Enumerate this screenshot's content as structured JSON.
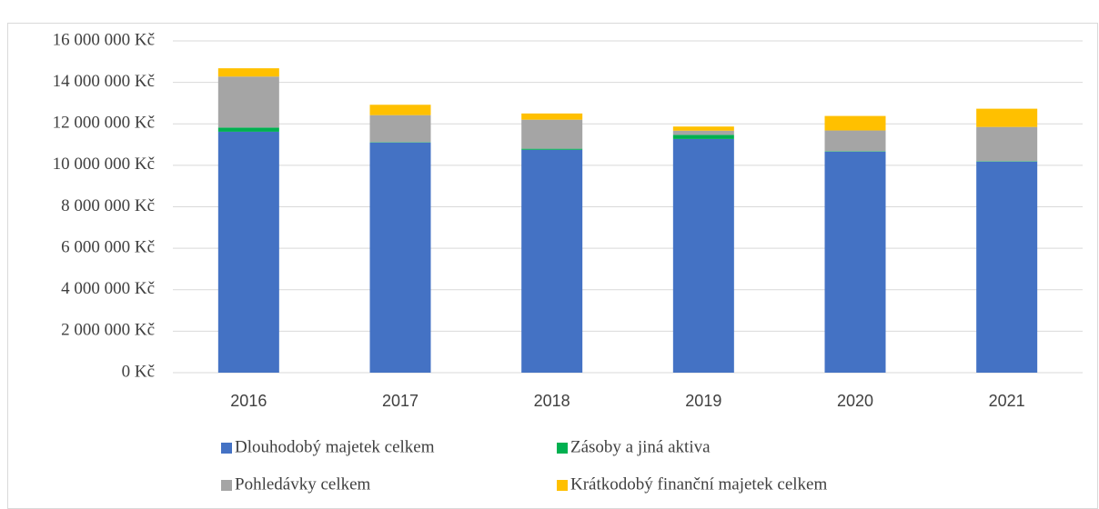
{
  "chart_data": {
    "type": "stacked_bar",
    "categories": [
      "2016",
      "2017",
      "2018",
      "2019",
      "2020",
      "2021"
    ],
    "series": [
      {
        "name": "Dlouhodobý majetek celkem",
        "color": "#4472c4",
        "values": [
          11620000,
          11100000,
          10750000,
          11270000,
          10660000,
          10180000
        ]
      },
      {
        "name": "Zásoby a jiná aktiva",
        "color": "#00b050",
        "values": [
          200000,
          20000,
          50000,
          200000,
          20000,
          20000
        ]
      },
      {
        "name": "Pohledávky celkem",
        "color": "#a5a5a5",
        "values": [
          2460000,
          1300000,
          1400000,
          200000,
          1000000,
          1650000
        ]
      },
      {
        "name": "Krátkodobý finanční majetek celkem",
        "color": "#ffc000",
        "values": [
          400000,
          500000,
          300000,
          200000,
          700000,
          880000
        ]
      }
    ],
    "ylim": [
      0,
      16000000
    ],
    "yticks": [
      {
        "value": 0,
        "label": "0 Kč"
      },
      {
        "value": 2000000,
        "label": "2 000 000 Kč"
      },
      {
        "value": 4000000,
        "label": "4 000 000 Kč"
      },
      {
        "value": 6000000,
        "label": "6 000 000 Kč"
      },
      {
        "value": 8000000,
        "label": "8 000 000 Kč"
      },
      {
        "value": 10000000,
        "label": "10 000 000 Kč"
      },
      {
        "value": 12000000,
        "label": "12 000 000 Kč"
      },
      {
        "value": 14000000,
        "label": "14 000 000 Kč"
      },
      {
        "value": 16000000,
        "label": "16 000 000 Kč"
      }
    ],
    "grid": true,
    "legend": "bottom"
  }
}
